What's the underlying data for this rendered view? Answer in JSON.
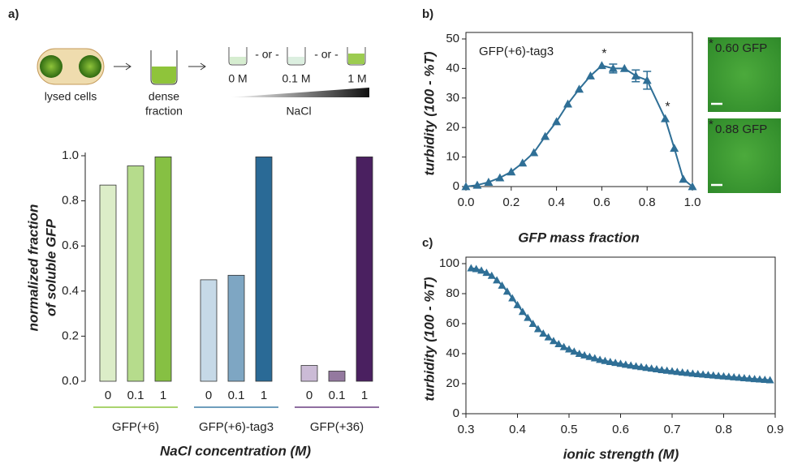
{
  "schematic": {
    "cells_label": "lysed cells",
    "fraction_label": [
      "dense",
      "fraction"
    ],
    "separator": "- or -",
    "tubes": [
      "0 M",
      "0.1 M",
      "1 M"
    ],
    "gradient_label": "NaCl"
  },
  "chart_data": [
    {
      "type": "grouped_bar",
      "panel": "a)",
      "categories": [
        "0",
        "0.1",
        "1"
      ],
      "series": [
        {
          "name": "GFP(+6)",
          "color": "#8dc63f",
          "bar_colors": [
            "#dcedc8",
            "#b6dc8c",
            "#86c043"
          ],
          "values": [
            0.87,
            0.955,
            0.995
          ]
        },
        {
          "name": "GFP(+6)-tag3",
          "color": "#3e7fa6",
          "bar_colors": [
            "#c6d9e7",
            "#7ea6c3",
            "#2a6a96"
          ],
          "values": [
            0.45,
            0.47,
            0.995
          ]
        },
        {
          "name": "GFP(+36)",
          "color": "#6a3f80",
          "bar_colors": [
            "#cbbbd6",
            "#94799f",
            "#4a2060"
          ],
          "values": [
            0.07,
            0.045,
            0.995
          ]
        }
      ],
      "ylim": [
        0,
        1
      ],
      "yticks": [
        {
          "value": 0,
          "label": "0.0"
        },
        0.2,
        0.4,
        0.6,
        0.8,
        {
          "value": 1,
          "label": "1.0"
        }
      ],
      "ylabel": [
        "normalized fraction",
        "of soluble GFP"
      ],
      "xlabel": "NaCl concentration (M)"
    },
    {
      "type": "line",
      "panel": "b)",
      "annotation": "GFP(+6)-tag3",
      "color": "#2f6f96",
      "x": [
        0,
        0.05,
        0.1,
        0.15,
        0.2,
        0.25,
        0.3,
        0.35,
        0.4,
        0.45,
        0.5,
        0.55,
        0.6,
        0.65,
        0.7,
        0.75,
        0.8,
        0.88,
        0.92,
        0.96,
        1
      ],
      "values": [
        0,
        0.5,
        1.5,
        3,
        5,
        8,
        11.5,
        17,
        22,
        28,
        33,
        37.5,
        41,
        40,
        40,
        37.5,
        36,
        23,
        13,
        2.5,
        0
      ],
      "errors": [
        null,
        null,
        null,
        null,
        null,
        null,
        null,
        null,
        null,
        null,
        null,
        null,
        null,
        1.5,
        null,
        2,
        3,
        null,
        null,
        null,
        null
      ],
      "highlights": [
        {
          "text": "*",
          "x": 0.6,
          "y": 41
        },
        {
          "text": "*",
          "x": 0.88,
          "y": 23
        }
      ],
      "micrographs": [
        {
          "marker": "*",
          "label": "0.60 GFP"
        },
        {
          "marker": "*",
          "label": "0.88 GFP"
        }
      ],
      "xlim": [
        0,
        1
      ],
      "xticks": [
        {
          "value": 0,
          "label": "0.0"
        },
        0.2,
        0.4,
        0.6,
        0.8,
        {
          "value": 1,
          "label": "1.0"
        }
      ],
      "ylim": [
        0,
        50
      ],
      "yticks": [
        0,
        10,
        20,
        30,
        40,
        50
      ],
      "xlabel": "GFP mass fraction",
      "ylabel": "turbidity (100 - %T)"
    },
    {
      "type": "line",
      "panel": "c)",
      "color": "#2f6f96",
      "x": [
        0.31,
        0.32,
        0.33,
        0.34,
        0.35,
        0.36,
        0.37,
        0.38,
        0.39,
        0.4,
        0.41,
        0.42,
        0.43,
        0.44,
        0.45,
        0.46,
        0.47,
        0.48,
        0.49,
        0.5,
        0.51,
        0.52,
        0.53,
        0.54,
        0.55,
        0.56,
        0.57,
        0.58,
        0.59,
        0.6,
        0.61,
        0.62,
        0.63,
        0.64,
        0.65,
        0.66,
        0.67,
        0.68,
        0.69,
        0.7,
        0.71,
        0.72,
        0.73,
        0.74,
        0.75,
        0.76,
        0.77,
        0.78,
        0.79,
        0.8,
        0.81,
        0.82,
        0.83,
        0.84,
        0.85,
        0.86,
        0.87,
        0.88,
        0.89
      ],
      "values": [
        97,
        96.5,
        95.5,
        94,
        92,
        89,
        85.5,
        81.5,
        77,
        72.5,
        68,
        64,
        60,
        56.5,
        53.5,
        51,
        48.5,
        46.5,
        44.5,
        43,
        41.5,
        40,
        39,
        38,
        37,
        36,
        35.3,
        34.6,
        34,
        33.4,
        32.8,
        32.2,
        31.7,
        31.2,
        30.7,
        30.2,
        29.7,
        29.2,
        28.8,
        28.4,
        28,
        27.6,
        27.2,
        26.8,
        26.5,
        26.2,
        25.9,
        25.6,
        25.3,
        25,
        24.7,
        24.4,
        24.1,
        23.8,
        23.5,
        23.2,
        23,
        22.7,
        22.4
      ],
      "xlim": [
        0.3,
        0.9
      ],
      "xticks": [
        0.3,
        0.4,
        0.5,
        0.6,
        0.7,
        0.8,
        0.9
      ],
      "ylim": [
        0,
        100
      ],
      "yticks": [
        0,
        20,
        40,
        60,
        80,
        100
      ],
      "xlabel": "ionic strength (M)",
      "ylabel": "turbidity (100 - %T)"
    }
  ]
}
